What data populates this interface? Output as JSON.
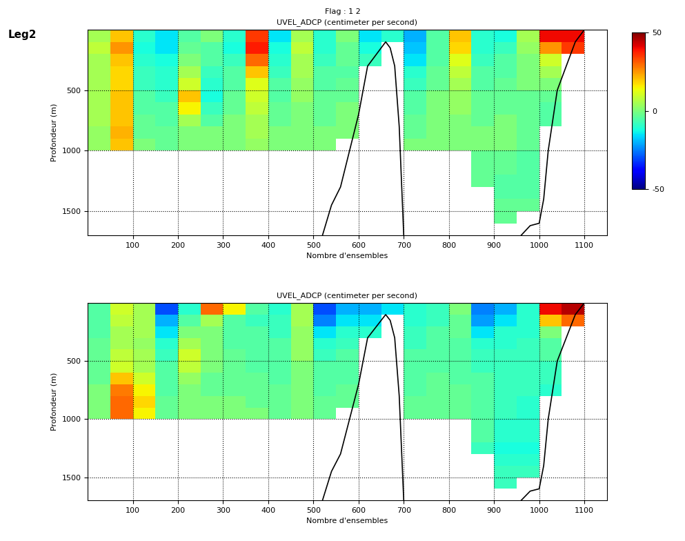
{
  "suptitle": "Flag : 1 2",
  "label": "Leg2",
  "chart_data": [
    {
      "type": "heatmap",
      "title": "UVEL_ADCP (centimeter per second)",
      "x_label": "Nombre d'ensembles",
      "y_label": "Profondeur (m)",
      "xlim": [
        0,
        1150
      ],
      "ylim": [
        1700,
        0
      ],
      "xticks": [
        100,
        200,
        300,
        400,
        500,
        600,
        700,
        800,
        900,
        1000,
        1100
      ],
      "yticks": [
        500,
        1000,
        1500
      ],
      "grid": true,
      "clim": [
        -50,
        50
      ],
      "colorbar_ticks": [
        -50,
        0,
        50
      ],
      "x_edges": [
        0,
        50,
        100,
        150,
        200,
        250,
        300,
        350,
        400,
        450,
        500,
        550,
        600,
        650,
        700,
        750,
        800,
        850,
        900,
        950,
        1000,
        1050,
        1100,
        1150
      ],
      "y_edges": [
        0,
        100,
        200,
        300,
        400,
        500,
        600,
        700,
        800,
        900,
        1000,
        1100,
        1200,
        1300,
        1400,
        1500,
        1600,
        1700
      ],
      "cells": [
        [
          5,
          20,
          -10,
          -15,
          -5,
          0,
          -10,
          35,
          -15,
          5,
          -10,
          0,
          -15,
          -10,
          -20,
          -5,
          20,
          -10,
          -12,
          5,
          40,
          40,
          null
        ],
        [
          8,
          25,
          -12,
          -15,
          -3,
          -5,
          -12,
          38,
          -12,
          8,
          -10,
          -3,
          -12,
          null,
          -18,
          -5,
          18,
          -10,
          -8,
          3,
          25,
          35,
          null
        ],
        [
          5,
          20,
          -10,
          -12,
          0,
          -5,
          -8,
          30,
          -10,
          5,
          -8,
          -3,
          -8,
          null,
          -15,
          -5,
          12,
          -8,
          -5,
          0,
          10,
          null,
          null
        ],
        [
          5,
          18,
          -8,
          -10,
          5,
          -8,
          -5,
          20,
          -8,
          5,
          -5,
          -5,
          null,
          null,
          -10,
          -3,
          8,
          -5,
          -5,
          0,
          5,
          null,
          null
        ],
        [
          5,
          18,
          -8,
          -10,
          10,
          -10,
          -5,
          12,
          -5,
          3,
          -5,
          -3,
          null,
          null,
          -8,
          -3,
          5,
          -5,
          -3,
          0,
          0,
          null,
          null
        ],
        [
          5,
          20,
          -5,
          -8,
          20,
          -12,
          -3,
          10,
          -5,
          3,
          -3,
          -3,
          null,
          null,
          -5,
          0,
          3,
          -3,
          -3,
          -3,
          -3,
          null,
          null
        ],
        [
          5,
          20,
          -5,
          -5,
          15,
          -8,
          -3,
          8,
          -3,
          0,
          -3,
          0,
          null,
          null,
          -5,
          0,
          3,
          -3,
          -3,
          -3,
          -5,
          null,
          null
        ],
        [
          5,
          20,
          -3,
          -5,
          5,
          -5,
          0,
          5,
          -3,
          0,
          -3,
          0,
          null,
          null,
          -3,
          0,
          0,
          -3,
          0,
          -3,
          -5,
          null,
          null
        ],
        [
          3,
          22,
          -3,
          -3,
          0,
          0,
          0,
          5,
          0,
          0,
          0,
          0,
          null,
          null,
          -3,
          0,
          0,
          0,
          0,
          -3,
          null,
          null,
          null
        ],
        [
          3,
          20,
          0,
          -3,
          0,
          0,
          0,
          3,
          0,
          0,
          0,
          null,
          null,
          null,
          0,
          0,
          0,
          0,
          0,
          -3,
          null,
          null,
          null
        ],
        [
          null,
          null,
          null,
          null,
          null,
          null,
          null,
          null,
          null,
          null,
          null,
          null,
          null,
          null,
          null,
          null,
          null,
          -3,
          -3,
          -5,
          null,
          null,
          null
        ],
        [
          null,
          null,
          null,
          null,
          null,
          null,
          null,
          null,
          null,
          null,
          null,
          null,
          null,
          null,
          null,
          null,
          null,
          -3,
          -3,
          -5,
          null,
          null,
          null
        ],
        [
          null,
          null,
          null,
          null,
          null,
          null,
          null,
          null,
          null,
          null,
          null,
          null,
          null,
          null,
          null,
          null,
          null,
          -3,
          -5,
          -5,
          null,
          null,
          null
        ],
        [
          null,
          null,
          null,
          null,
          null,
          null,
          null,
          null,
          null,
          null,
          null,
          null,
          null,
          null,
          null,
          null,
          null,
          null,
          -5,
          -5,
          null,
          null,
          null
        ],
        [
          null,
          null,
          null,
          null,
          null,
          null,
          null,
          null,
          null,
          null,
          null,
          null,
          null,
          null,
          null,
          null,
          null,
          null,
          -3,
          -3,
          null,
          null,
          null
        ],
        [
          null,
          null,
          null,
          null,
          null,
          null,
          null,
          null,
          null,
          null,
          null,
          null,
          null,
          null,
          null,
          null,
          null,
          null,
          -3,
          null,
          null,
          null,
          null
        ],
        [
          null,
          null,
          null,
          null,
          null,
          null,
          null,
          null,
          null,
          null,
          null,
          null,
          null,
          null,
          null,
          null,
          null,
          null,
          null,
          null,
          null,
          null,
          null
        ]
      ],
      "bottom": {
        "x": [
          520,
          540,
          560,
          580,
          600,
          620,
          640,
          660,
          670,
          680,
          690,
          700,
          null,
          960,
          980,
          1000,
          1010,
          1020,
          1040,
          1060,
          1080,
          1100
        ],
        "depth": [
          1700,
          1450,
          1300,
          1000,
          700,
          300,
          200,
          100,
          150,
          300,
          800,
          1700,
          null,
          1700,
          1620,
          1600,
          1400,
          1000,
          500,
          300,
          100,
          0
        ]
      }
    },
    {
      "type": "heatmap",
      "title": "UVEL_ADCP (centimeter per second)",
      "x_label": "Nombre d'ensembles",
      "y_label": "Profondeur (m)",
      "xlim": [
        0,
        1150
      ],
      "ylim": [
        1700,
        0
      ],
      "xticks": [
        100,
        200,
        300,
        400,
        500,
        600,
        700,
        800,
        900,
        1000,
        1100
      ],
      "yticks": [
        500,
        1000,
        1500
      ],
      "grid": true,
      "clim": [
        -50,
        50
      ],
      "x_edges": [
        0,
        50,
        100,
        150,
        200,
        250,
        300,
        350,
        400,
        450,
        500,
        550,
        600,
        650,
        700,
        750,
        800,
        850,
        900,
        950,
        1000,
        1050,
        1100,
        1150
      ],
      "y_edges": [
        0,
        100,
        200,
        300,
        400,
        500,
        600,
        700,
        800,
        900,
        1000,
        1100,
        1200,
        1300,
        1400,
        1500,
        1600,
        1700
      ],
      "cells": [
        [
          -5,
          10,
          5,
          -30,
          -10,
          30,
          15,
          -5,
          -10,
          5,
          -30,
          -20,
          -20,
          -15,
          -10,
          -8,
          0,
          -25,
          -20,
          -10,
          40,
          45,
          null
        ],
        [
          -5,
          8,
          5,
          -20,
          -5,
          5,
          -5,
          -8,
          -8,
          5,
          -25,
          -15,
          -15,
          null,
          -10,
          -8,
          -3,
          -22,
          -15,
          -10,
          20,
          30,
          null
        ],
        [
          -5,
          5,
          5,
          -15,
          0,
          0,
          -5,
          -5,
          -8,
          3,
          -15,
          -10,
          -10,
          null,
          -8,
          -5,
          -3,
          -15,
          -10,
          -10,
          0,
          null,
          null
        ],
        [
          -3,
          5,
          3,
          -10,
          5,
          0,
          -5,
          -5,
          -5,
          3,
          -10,
          -8,
          null,
          null,
          -8,
          -5,
          -5,
          -10,
          -10,
          -8,
          -5,
          null,
          null
        ],
        [
          -3,
          8,
          5,
          -8,
          10,
          0,
          -3,
          -5,
          -5,
          3,
          -8,
          -5,
          null,
          null,
          -5,
          -5,
          -5,
          -8,
          -8,
          -8,
          -5,
          null,
          null
        ],
        [
          -3,
          10,
          5,
          -5,
          8,
          0,
          -3,
          -5,
          -5,
          0,
          -5,
          -5,
          null,
          null,
          -5,
          -5,
          -5,
          -8,
          -8,
          -8,
          -8,
          null,
          null
        ],
        [
          -3,
          20,
          10,
          -5,
          3,
          -3,
          -3,
          -3,
          -5,
          0,
          -5,
          -5,
          null,
          null,
          -5,
          -3,
          -5,
          -5,
          -8,
          -8,
          -8,
          null,
          null
        ],
        [
          0,
          28,
          15,
          -5,
          0,
          -3,
          -3,
          -3,
          -3,
          0,
          -5,
          -3,
          null,
          null,
          -5,
          -3,
          -3,
          -5,
          -8,
          -8,
          -10,
          null,
          null
        ],
        [
          0,
          30,
          18,
          -3,
          0,
          0,
          0,
          -3,
          -3,
          0,
          -3,
          -3,
          null,
          null,
          -3,
          -3,
          -3,
          -5,
          -8,
          -10,
          null,
          null,
          null
        ],
        [
          0,
          30,
          15,
          -3,
          0,
          0,
          0,
          0,
          -3,
          0,
          -3,
          null,
          null,
          null,
          -3,
          -3,
          -3,
          -5,
          -8,
          -10,
          null,
          null,
          null
        ],
        [
          null,
          null,
          null,
          null,
          null,
          null,
          null,
          null,
          null,
          null,
          null,
          null,
          null,
          null,
          null,
          null,
          null,
          -5,
          -10,
          -10,
          null,
          null,
          null
        ],
        [
          null,
          null,
          null,
          null,
          null,
          null,
          null,
          null,
          null,
          null,
          null,
          null,
          null,
          null,
          null,
          null,
          null,
          -5,
          -10,
          -10,
          null,
          null,
          null
        ],
        [
          null,
          null,
          null,
          null,
          null,
          null,
          null,
          null,
          null,
          null,
          null,
          null,
          null,
          null,
          null,
          null,
          null,
          -8,
          -12,
          -12,
          null,
          null,
          null
        ],
        [
          null,
          null,
          null,
          null,
          null,
          null,
          null,
          null,
          null,
          null,
          null,
          null,
          null,
          null,
          null,
          null,
          null,
          null,
          -10,
          -10,
          null,
          null,
          null
        ],
        [
          null,
          null,
          null,
          null,
          null,
          null,
          null,
          null,
          null,
          null,
          null,
          null,
          null,
          null,
          null,
          null,
          null,
          null,
          -8,
          -8,
          null,
          null,
          null
        ],
        [
          null,
          null,
          null,
          null,
          null,
          null,
          null,
          null,
          null,
          null,
          null,
          null,
          null,
          null,
          null,
          null,
          null,
          null,
          -8,
          null,
          null,
          null,
          null
        ],
        [
          null,
          null,
          null,
          null,
          null,
          null,
          null,
          null,
          null,
          null,
          null,
          null,
          null,
          null,
          null,
          null,
          null,
          null,
          null,
          null,
          null,
          null,
          null
        ]
      ],
      "bottom": {
        "x": [
          520,
          540,
          560,
          580,
          600,
          620,
          640,
          660,
          670,
          680,
          690,
          700,
          null,
          960,
          980,
          1000,
          1010,
          1020,
          1040,
          1060,
          1080,
          1100
        ],
        "depth": [
          1700,
          1450,
          1300,
          1000,
          700,
          300,
          200,
          100,
          150,
          300,
          800,
          1700,
          null,
          1700,
          1620,
          1600,
          1400,
          1000,
          500,
          300,
          100,
          0
        ]
      }
    }
  ]
}
